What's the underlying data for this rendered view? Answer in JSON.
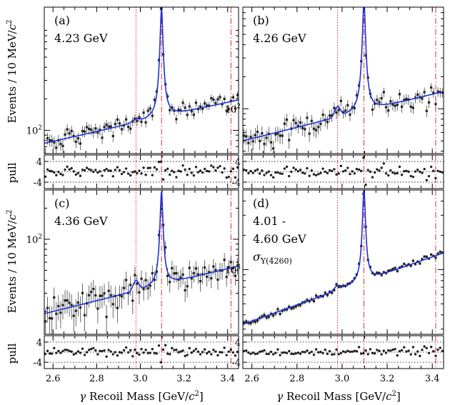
{
  "chart_data": {
    "type": "scatter",
    "x_range": [
      2.56,
      3.45
    ],
    "x_ticks": [
      "2.6",
      "2.8",
      "3.0",
      "3.2",
      "3.4"
    ],
    "xlabel_gamma": "γ",
    "xlabel_rest": " Recoil Mass [GeV/",
    "xlabel_c": "c",
    "xlabel_sup": "2",
    "xlabel_close": "]",
    "ylabel_main": "Events / 10 MeV/",
    "ylabel_c": "c",
    "ylabel_sup": "2",
    "ylabel_pull": "pull",
    "pull_ticks": [
      "4",
      "-4"
    ],
    "pull_range": [
      -6.5,
      6.5
    ],
    "vertical_lines": [
      {
        "x": 2.98,
        "style": "dotted",
        "color": "#d01818"
      },
      {
        "x": 3.097,
        "style": "dashdot",
        "color": "#d01818"
      },
      {
        "x": 3.415,
        "style": "dashdot",
        "color": "#d01818"
      }
    ],
    "panels": [
      {
        "id": "a",
        "tag": "(a)",
        "label_lines": [
          "4.23 GeV"
        ],
        "sigma": "",
        "y_tick": "10",
        "y_tick_sup": "2",
        "y_tick_value": 100,
        "log_ylim": [
          60,
          1500
        ],
        "background": {
          "start": 75,
          "end": 195
        },
        "peak": {
          "x": 3.097,
          "height": 1300,
          "width": 0.006
        },
        "bump": {
          "x": 2.98,
          "height": 8,
          "width": 0.015
        },
        "noise": 0.17,
        "points": {
          "x_start": 2.565,
          "x_end": 3.445,
          "step": 0.01
        }
      },
      {
        "id": "b",
        "tag": "(b)",
        "label_lines": [
          "4.26 GeV"
        ],
        "sigma": "",
        "y_tick": "10",
        "y_tick_sup": "2",
        "y_tick_value": 100,
        "log_ylim": [
          38,
          900
        ],
        "background": {
          "start": 50,
          "end": 145
        },
        "peak": {
          "x": 3.097,
          "height": 900,
          "width": 0.006
        },
        "bump": {
          "x": 2.98,
          "height": 20,
          "width": 0.012
        },
        "noise": 0.24,
        "points": {
          "x_start": 2.565,
          "x_end": 3.445,
          "step": 0.01
        }
      },
      {
        "id": "c",
        "tag": "(c)",
        "label_lines": [
          "4.36 GeV"
        ],
        "sigma": "",
        "y_tick": "10",
        "y_tick_sup": "2",
        "y_tick_value": 100,
        "log_ylim": [
          12,
          300
        ],
        "background": {
          "start": 19,
          "end": 55
        },
        "peak": {
          "x": 3.097,
          "height": 250,
          "width": 0.006
        },
        "bump": {
          "x": 2.98,
          "height": 8,
          "width": 0.012
        },
        "noise": 0.3,
        "points": {
          "x_start": 2.565,
          "x_end": 3.445,
          "step": 0.01
        }
      },
      {
        "id": "d",
        "tag": "(d)",
        "label_lines": [
          "4.01 -",
          "4.60 GeV"
        ],
        "sigma": "Y(4260)",
        "y_tick": "10",
        "y_tick_sup": "3",
        "y_tick_value": 1000,
        "log_ylim": [
          270,
          5000
        ],
        "background": {
          "start": 330,
          "end": 1400
        },
        "peak": {
          "x": 3.097,
          "height": 4300,
          "width": 0.006
        },
        "bump": {
          "x": 2.98,
          "height": 60,
          "width": 0.015
        },
        "noise": 0.06,
        "points": {
          "x_start": 2.565,
          "x_end": 3.445,
          "step": 0.01
        }
      }
    ]
  }
}
